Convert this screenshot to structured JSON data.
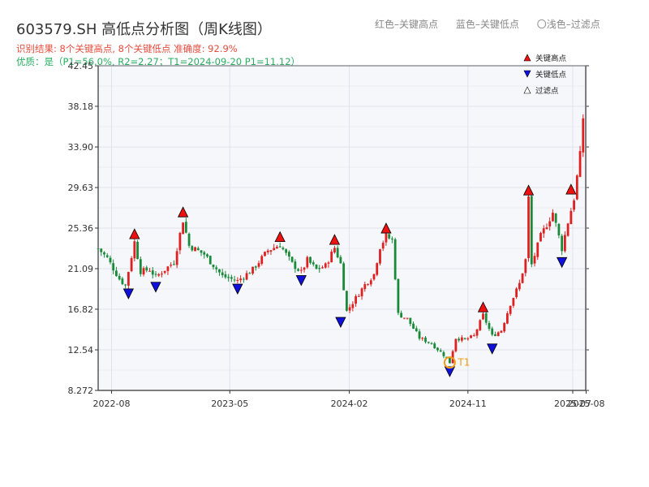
{
  "header": {
    "title": "603579.SH 高低点分析图（周K线图）",
    "result_text": "识别结果: 8个关键高点, 8个关键低点  准确度: 92.9%",
    "quality_text": "优质：是（P1=56.0%, R2=2.27；T1=2024-09-20 P1=11.12）"
  },
  "top_legend": {
    "red": "红色–关键高点",
    "blue": "蓝色–关键低点",
    "light": "〇浅色–过滤点"
  },
  "colors": {
    "up": "#e02020",
    "down": "#1a8a3a",
    "high_marker": "#ee1111",
    "low_marker": "#1010dd",
    "t1": "#f39c12",
    "grid": "#dfe3ea",
    "plot_bg": "#f5f7fa"
  },
  "chart_data": {
    "type": "candlestick",
    "ylim": [
      8.272,
      42.45
    ],
    "y_ticks": [
      "8.272",
      "12.54",
      "16.82",
      "21.09",
      "25.36",
      "29.63",
      "33.90",
      "38.18",
      "42.45"
    ],
    "x_range": [
      "2022-07-01",
      "2025-07-31"
    ],
    "x_ticks": [
      {
        "date": "2022-08-01",
        "label": "2022-08"
      },
      {
        "date": "2023-05-01",
        "label": "2023-05"
      },
      {
        "date": "2024-02-01",
        "label": "2024-02"
      },
      {
        "date": "2024-11-01",
        "label": "2024-11"
      },
      {
        "date": "2025-07-01",
        "label": "2025-07"
      },
      {
        "date": "2025-08-01",
        "label": "2025-08"
      }
    ],
    "legend": [
      {
        "label": "关键高点",
        "marker": "high"
      },
      {
        "label": "关键低点",
        "marker": "low"
      },
      {
        "label": "过滤点",
        "marker": "filtered"
      }
    ],
    "price_path": [
      [
        "2022-07-01",
        23.2
      ],
      [
        "2022-07-22",
        22.2
      ],
      [
        "2022-08-19",
        20.0
      ],
      [
        "2022-09-02",
        19.3
      ],
      [
        "2022-09-23",
        23.9
      ],
      [
        "2022-10-07",
        20.8
      ],
      [
        "2022-10-28",
        21.0
      ],
      [
        "2022-11-11",
        20.2
      ],
      [
        "2022-12-23",
        21.8
      ],
      [
        "2023-01-13",
        26.2
      ],
      [
        "2023-01-27",
        23.5
      ],
      [
        "2023-03-03",
        22.6
      ],
      [
        "2023-04-14",
        20.3
      ],
      [
        "2023-05-19",
        19.8
      ],
      [
        "2023-06-23",
        21.0
      ],
      [
        "2023-07-28",
        23.0
      ],
      [
        "2023-08-25",
        23.6
      ],
      [
        "2023-09-22",
        21.6
      ],
      [
        "2023-10-13",
        20.7
      ],
      [
        "2023-10-27",
        22.0
      ],
      [
        "2023-11-17",
        21.0
      ],
      [
        "2023-12-08",
        21.4
      ],
      [
        "2023-12-29",
        23.3
      ],
      [
        "2024-01-12",
        21.6
      ],
      [
        "2024-01-26",
        16.6
      ],
      [
        "2024-02-16",
        18.0
      ],
      [
        "2024-03-08",
        19.4
      ],
      [
        "2024-03-29",
        20.5
      ],
      [
        "2024-04-12",
        23.4
      ],
      [
        "2024-04-26",
        24.5
      ],
      [
        "2024-05-10",
        24.1
      ],
      [
        "2024-05-24",
        16.3
      ],
      [
        "2024-06-14",
        15.8
      ],
      [
        "2024-07-12",
        13.8
      ],
      [
        "2024-08-09",
        13.2
      ],
      [
        "2024-09-06",
        12.0
      ],
      [
        "2024-09-20",
        11.2
      ],
      [
        "2024-10-04",
        13.8
      ],
      [
        "2024-10-25",
        13.6
      ],
      [
        "2024-11-15",
        14.0
      ],
      [
        "2024-12-06",
        16.2
      ],
      [
        "2024-12-27",
        14.0
      ],
      [
        "2025-01-17",
        14.6
      ],
      [
        "2025-02-07",
        17.4
      ],
      [
        "2025-02-28",
        19.5
      ],
      [
        "2025-03-14",
        22.0
      ],
      [
        "2025-03-21",
        28.5
      ],
      [
        "2025-03-28",
        21.5
      ],
      [
        "2025-04-18",
        24.5
      ],
      [
        "2025-05-16",
        27.0
      ],
      [
        "2025-06-06",
        23.2
      ],
      [
        "2025-06-20",
        26.0
      ],
      [
        "2025-07-04",
        28.5
      ],
      [
        "2025-07-18",
        33.0
      ],
      [
        "2025-07-25",
        37.0
      ]
    ],
    "key_highs": [
      {
        "date": "2022-09-23",
        "price": 23.9
      },
      {
        "date": "2023-01-13",
        "price": 26.2
      },
      {
        "date": "2023-08-25",
        "price": 23.6
      },
      {
        "date": "2023-12-29",
        "price": 23.3
      },
      {
        "date": "2024-04-26",
        "price": 24.5
      },
      {
        "date": "2024-12-06",
        "price": 16.2
      },
      {
        "date": "2025-03-21",
        "price": 28.5
      },
      {
        "date": "2025-06-27",
        "price": 28.6
      }
    ],
    "key_lows": [
      {
        "date": "2022-09-09",
        "price": 19.3
      },
      {
        "date": "2022-11-11",
        "price": 20.0
      },
      {
        "date": "2023-05-19",
        "price": 19.8
      },
      {
        "date": "2023-10-13",
        "price": 20.7
      },
      {
        "date": "2024-01-12",
        "price": 16.3
      },
      {
        "date": "2024-09-20",
        "price": 11.1
      },
      {
        "date": "2024-12-27",
        "price": 13.5
      },
      {
        "date": "2025-06-06",
        "price": 22.6
      }
    ],
    "t1": {
      "date": "2024-09-20",
      "price": 11.12,
      "label": "T1"
    }
  }
}
